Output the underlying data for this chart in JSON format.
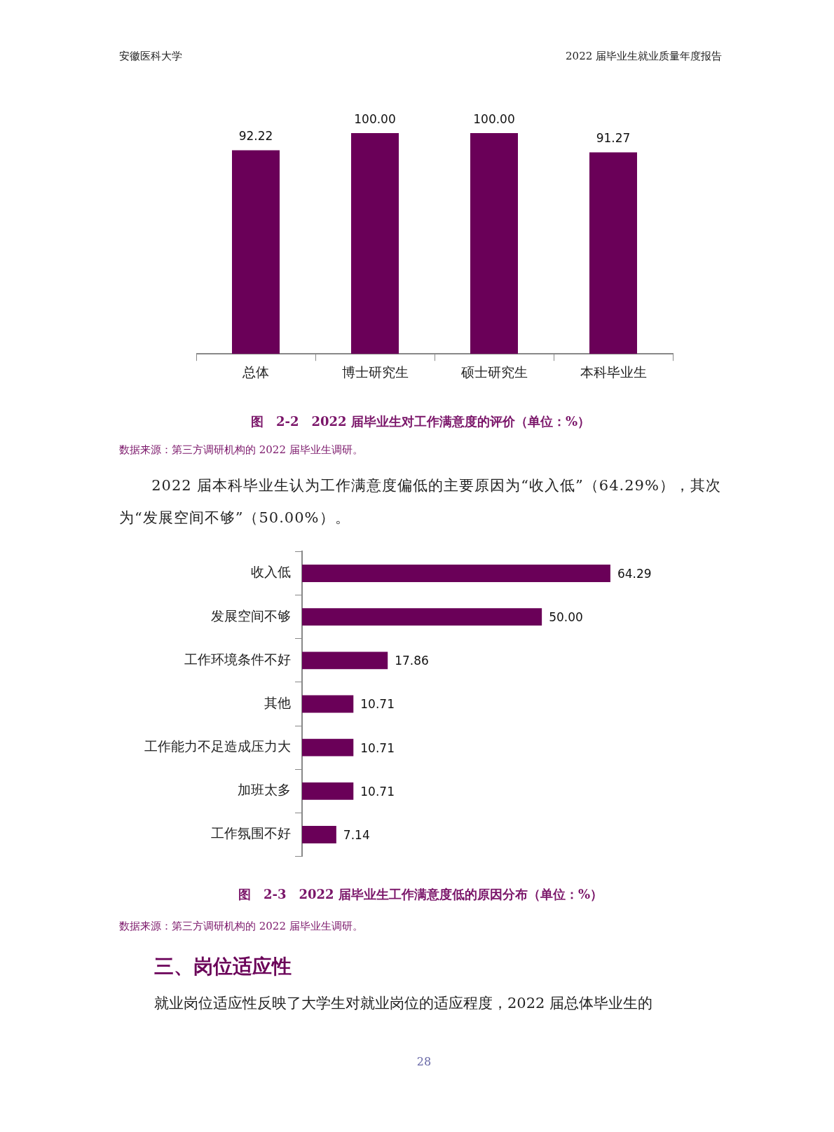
{
  "chart_data": [
    {
      "type": "bar",
      "title": "图　2-2　2022 届毕业生对工作满意度的评价（单位：%）",
      "categories": [
        "总体",
        "博士研究生",
        "硕士研究生",
        "本科毕业生"
      ],
      "series": [
        {
          "color": "#6a0058",
          "values": [
            92.22,
            100,
            100,
            91.27
          ],
          "value_labels": [
            "92.22",
            "100.00",
            "100.00",
            "91.27"
          ]
        }
      ],
      "legend": false,
      "tick_labels": "x",
      "annotations": [
        "安徽医科大学",
        "2022 届毕业生就业质量年度报告",
        "数据来源：第三方调研机构的 2022 届毕业生调研。"
      ]
    },
    {
      "type": "bar",
      "orientation": "horizontal",
      "title": "图　2-3　2022 届毕业生工作满意度低的原因分布（单位：%）",
      "categories": [
        "收入低",
        "发展空间不够",
        "工作环境条件不好",
        "其他",
        "工作能力不足造成压力大",
        "加班太多",
        "工作氛围不好"
      ],
      "series": [
        {
          "color": "#6a0058",
          "values": [
            64.29,
            50,
            17.86,
            10.71,
            10.71,
            10.71,
            7.14
          ],
          "value_labels": [
            "64.29",
            "50.00",
            "17.86",
            "10.71",
            "10.71",
            "10.71",
            "7.14"
          ]
        }
      ],
      "legend": false,
      "tick_labels": "y",
      "annotations": [
        "2022 届本科毕业生认为工作满意度偏低的主要原因为“收入低”（64.29%），其次为“发展空间不够”（50.00%）。",
        "数据来源：第三方调研机构的 2022 届毕业生调研。",
        "三、岗位适应性",
        "就业岗位适应性反映了大学生对就业岗位的适应程度，2022 届总体毕业生的",
        "28"
      ]
    }
  ]
}
